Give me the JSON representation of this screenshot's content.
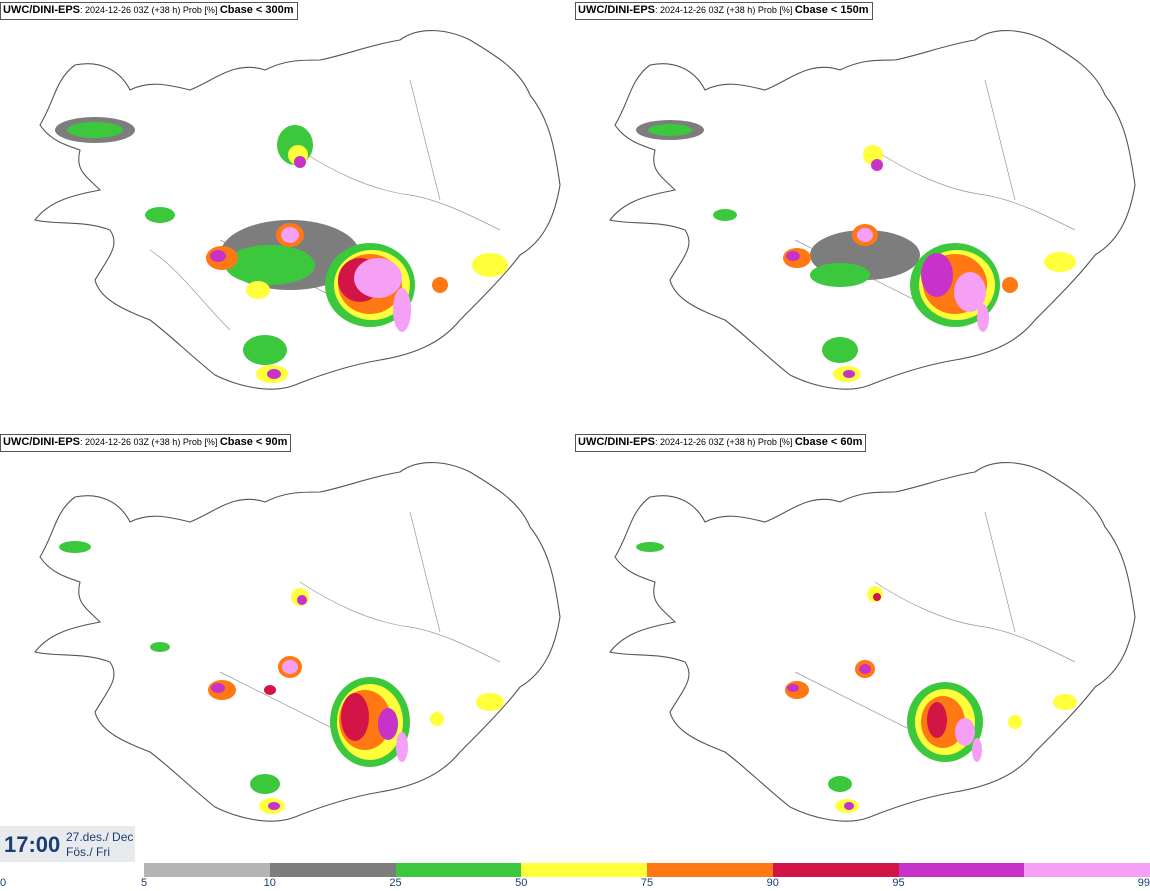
{
  "panels": [
    {
      "model": "UWC/DINI-EPS",
      "meta": ": 2024-12-26 03Z (+38 h) Prob [%] ",
      "field": "Cbase < 300m"
    },
    {
      "model": "UWC/DINI-EPS",
      "meta": ": 2024-12-26 03Z (+38 h) Prob [%] ",
      "field": "Cbase < 150m"
    },
    {
      "model": "UWC/DINI-EPS",
      "meta": ": 2024-12-26 03Z (+38 h) Prob [%] ",
      "field": "Cbase < 90m"
    },
    {
      "model": "UWC/DINI-EPS",
      "meta": ": 2024-12-26 03Z (+38 h) Prob [%] ",
      "field": "Cbase < 60m"
    }
  ],
  "time": {
    "clock": "17:00",
    "date_line1": "27.des./ Dec",
    "date_line2": "Fös./ Fri"
  },
  "legend": {
    "ticks": [
      "0",
      "5",
      "10",
      "25",
      "50",
      "75",
      "90",
      "95",
      "99"
    ],
    "colors": [
      "#b4b4b4",
      "#7d7d7d",
      "#3cc83c",
      "#ffff3c",
      "#ff7814",
      "#d21446",
      "#c832c8",
      "#f5a0f5"
    ]
  }
}
